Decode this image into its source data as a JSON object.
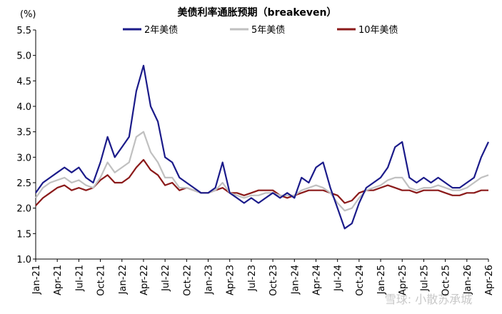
{
  "chart_data": {
    "type": "line",
    "title": "美债利率通胀预期（breakeven）",
    "y_unit_label": "(%)",
    "watermark": "雪球: 小散苏承城",
    "categories": [
      "Jan-21",
      null,
      null,
      "Apr-21",
      null,
      null,
      "Jul-21",
      null,
      null,
      "Oct-21",
      null,
      null,
      "Jan-22",
      null,
      null,
      "Apr-22",
      null,
      null,
      "Jul-22",
      null,
      null,
      "Oct-22",
      null,
      null,
      "Jan-23",
      null,
      null,
      "Apr-23",
      null,
      null,
      "Jul-23",
      null,
      null,
      "Oct-23",
      null,
      null,
      "Jan-24",
      null,
      null,
      "Apr-24",
      null,
      null,
      "Jul-24",
      null,
      null,
      "Oct-24",
      null,
      null,
      "Jan-25",
      null,
      null,
      "Apr-25",
      null,
      null,
      "Jul-25",
      null,
      null,
      "Oct-25",
      null,
      null,
      "Jan-26",
      null,
      null,
      "Apr-26"
    ],
    "series": [
      {
        "name": "2年美债",
        "color": "#1b1b8a",
        "values": [
          2.3,
          2.5,
          2.6,
          2.7,
          2.8,
          2.7,
          2.8,
          2.6,
          2.5,
          2.9,
          3.4,
          3.0,
          3.2,
          3.4,
          4.3,
          4.8,
          4.0,
          3.7,
          3.0,
          2.9,
          2.6,
          2.5,
          2.4,
          2.3,
          2.3,
          2.4,
          2.9,
          2.3,
          2.2,
          2.1,
          2.2,
          2.1,
          2.2,
          2.3,
          2.2,
          2.3,
          2.2,
          2.6,
          2.5,
          2.8,
          2.9,
          2.4,
          2.0,
          1.6,
          1.7,
          2.1,
          2.4,
          2.5,
          2.6,
          2.8,
          3.2,
          3.3,
          2.6,
          2.5,
          2.6,
          2.5,
          2.6,
          2.5,
          2.4,
          2.4,
          2.5,
          2.6,
          3.0,
          3.3
        ]
      },
      {
        "name": "5年美债",
        "color": "#c0c0c0",
        "values": [
          2.2,
          2.4,
          2.5,
          2.55,
          2.6,
          2.5,
          2.55,
          2.45,
          2.4,
          2.6,
          2.9,
          2.7,
          2.8,
          2.9,
          3.4,
          3.5,
          3.1,
          2.9,
          2.6,
          2.6,
          2.4,
          2.4,
          2.35,
          2.3,
          2.3,
          2.35,
          2.5,
          2.3,
          2.25,
          2.2,
          2.25,
          2.25,
          2.3,
          2.3,
          2.25,
          2.25,
          2.25,
          2.35,
          2.4,
          2.45,
          2.4,
          2.3,
          2.1,
          1.95,
          2.0,
          2.2,
          2.35,
          2.4,
          2.45,
          2.55,
          2.6,
          2.6,
          2.4,
          2.35,
          2.4,
          2.4,
          2.45,
          2.4,
          2.35,
          2.35,
          2.4,
          2.5,
          2.6,
          2.65
        ]
      },
      {
        "name": "10年美债",
        "color": "#8b1a1a",
        "values": [
          2.05,
          2.2,
          2.3,
          2.4,
          2.45,
          2.35,
          2.4,
          2.35,
          2.4,
          2.55,
          2.65,
          2.5,
          2.5,
          2.6,
          2.8,
          2.95,
          2.75,
          2.65,
          2.45,
          2.5,
          2.35,
          2.4,
          2.35,
          2.3,
          2.3,
          2.35,
          2.4,
          2.3,
          2.3,
          2.25,
          2.3,
          2.35,
          2.35,
          2.35,
          2.25,
          2.2,
          2.25,
          2.3,
          2.35,
          2.35,
          2.35,
          2.3,
          2.25,
          2.1,
          2.15,
          2.3,
          2.35,
          2.35,
          2.4,
          2.45,
          2.4,
          2.35,
          2.35,
          2.3,
          2.35,
          2.35,
          2.35,
          2.3,
          2.25,
          2.25,
          2.3,
          2.3,
          2.35,
          2.35
        ]
      }
    ],
    "ylim": [
      1.0,
      5.5
    ],
    "yticks": [
      {
        "value": 1.0,
        "label": "1.0"
      },
      1.5,
      {
        "value": 2.0,
        "label": "2.0"
      },
      2.5,
      {
        "value": 3.0,
        "label": "3.0"
      },
      3.5,
      {
        "value": 4.0,
        "label": "4.0"
      },
      4.5,
      {
        "value": 5.0,
        "label": "5.0"
      },
      5.5
    ],
    "grid": false,
    "legend": "top"
  }
}
